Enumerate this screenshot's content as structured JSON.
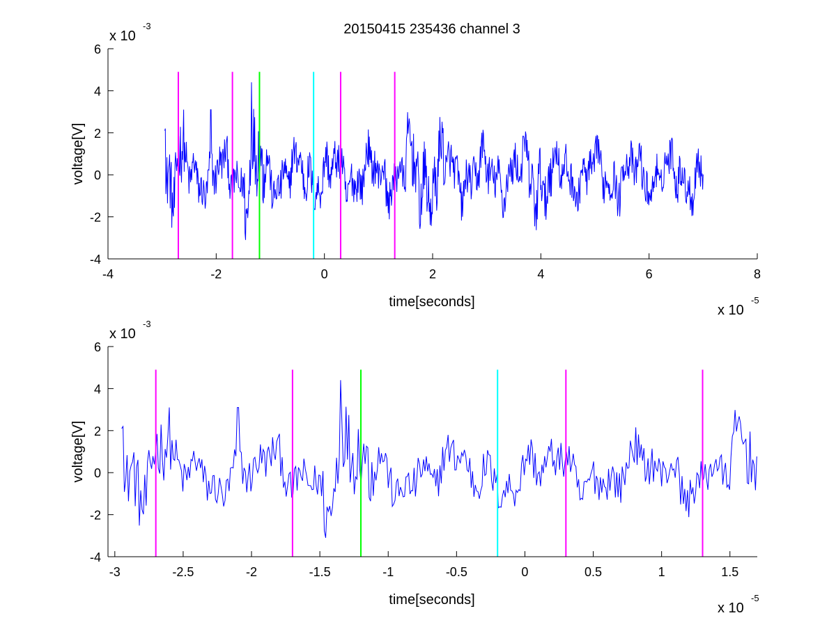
{
  "figure": {
    "title": "20150415 235436 channel 3"
  },
  "chart_data": [
    {
      "type": "line",
      "xlabel": "time[seconds]",
      "ylabel": "voltage[V]",
      "xlim": [
        -4,
        8
      ],
      "ylim": [
        -4,
        6
      ],
      "x_scale_label": "x 10",
      "x_scale_exponent": "-5",
      "y_scale_label": "x 10",
      "y_scale_exponent": "-3",
      "x_ticks": [
        -4,
        -2,
        0,
        2,
        4,
        6,
        8
      ],
      "x_tick_labels": [
        "-4",
        "-2",
        "0",
        "2",
        "4",
        "6",
        "8"
      ],
      "y_ticks": [
        -4,
        -2,
        0,
        2,
        4,
        6
      ],
      "y_tick_labels": [
        "-4",
        "-2",
        "0",
        "2",
        "4",
        "6"
      ],
      "grid": false,
      "signal": {
        "color": "#0000ff",
        "x_start": -2.95,
        "x_end": 7.0,
        "samples": 1000,
        "description_values_mV": {
          "start": 2.1,
          "min_peak": -3.1,
          "max_peak": 4.4
        }
      },
      "markers": [
        {
          "x": -2.7,
          "color": "#ff00ff",
          "y_top": 4.9,
          "y_bottom": -4.0
        },
        {
          "x": -1.7,
          "color": "#ff00ff",
          "y_top": 4.9,
          "y_bottom": -4.0
        },
        {
          "x": -1.2,
          "color": "#00ff00",
          "y_top": 4.9,
          "y_bottom": -4.0
        },
        {
          "x": -0.2,
          "color": "#00ffff",
          "y_top": 4.9,
          "y_bottom": -4.0
        },
        {
          "x": 0.3,
          "color": "#ff00ff",
          "y_top": 4.9,
          "y_bottom": -4.0
        },
        {
          "x": 1.3,
          "color": "#ff00ff",
          "y_top": 4.9,
          "y_bottom": -4.0
        }
      ]
    },
    {
      "type": "line",
      "xlabel": "time[seconds]",
      "ylabel": "voltage[V]",
      "xlim": [
        -3.05,
        1.7
      ],
      "ylim": [
        -4,
        6
      ],
      "x_scale_label": "x 10",
      "x_scale_exponent": "-5",
      "y_scale_label": "x 10",
      "y_scale_exponent": "-3",
      "x_ticks": [
        -3,
        -2.5,
        -2,
        -1.5,
        -1,
        -0.5,
        0,
        0.5,
        1,
        1.5
      ],
      "x_tick_labels": [
        "-3",
        "-2.5",
        "-2",
        "-1.5",
        "-1",
        "-0.5",
        "0",
        "0.5",
        "1",
        "1.5"
      ],
      "y_ticks": [
        -4,
        -2,
        0,
        2,
        4,
        6
      ],
      "y_tick_labels": [
        "-4",
        "-2",
        "0",
        "2",
        "4",
        "6"
      ],
      "grid": false,
      "signal": {
        "color": "#0000ff",
        "x_start": -2.95,
        "x_end": 1.7,
        "samples": 460
      },
      "markers": [
        {
          "x": -2.7,
          "color": "#ff00ff",
          "y_top": 4.9,
          "y_bottom": -4.0
        },
        {
          "x": -1.7,
          "color": "#ff00ff",
          "y_top": 4.9,
          "y_bottom": -4.0
        },
        {
          "x": -1.2,
          "color": "#00ff00",
          "y_top": 4.9,
          "y_bottom": -4.0
        },
        {
          "x": -0.2,
          "color": "#00ffff",
          "y_top": 4.9,
          "y_bottom": -4.0
        },
        {
          "x": 0.3,
          "color": "#ff00ff",
          "y_top": 4.9,
          "y_bottom": -4.0
        },
        {
          "x": 1.3,
          "color": "#ff00ff",
          "y_top": 4.9,
          "y_bottom": -4.0
        }
      ]
    }
  ]
}
